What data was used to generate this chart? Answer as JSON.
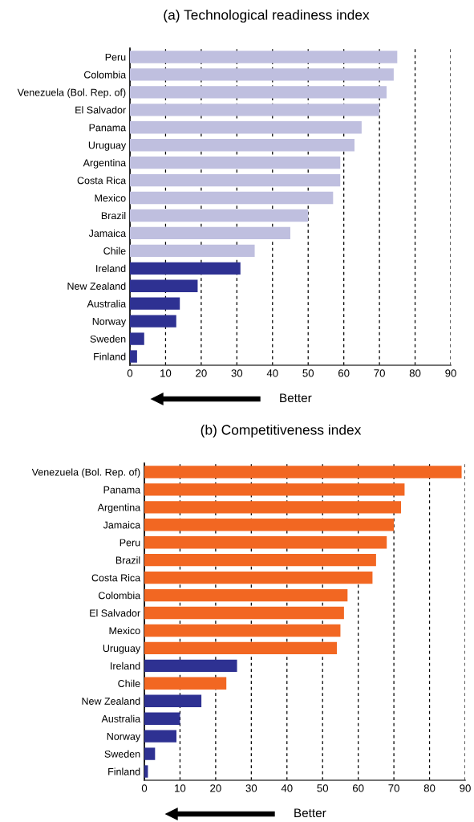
{
  "chart_data": [
    {
      "type": "bar",
      "orientation": "horizontal",
      "title": "(a) Technological readiness index",
      "categories": [
        "Peru",
        "Colombia",
        "Venezuela (Bol. Rep. of)",
        "El Salvador",
        "Panama",
        "Uruguay",
        "Argentina",
        "Costa Rica",
        "Mexico",
        "Brazil",
        "Jamaica",
        "Chile",
        "Ireland",
        "New Zealand",
        "Australia",
        "Norway",
        "Sweden",
        "Finland"
      ],
      "values": [
        75,
        74,
        72,
        70,
        65,
        63,
        59,
        59,
        57,
        50,
        45,
        35,
        31,
        19,
        14,
        13,
        4,
        2
      ],
      "colors": [
        "#bfbfdf",
        "#bfbfdf",
        "#bfbfdf",
        "#bfbfdf",
        "#bfbfdf",
        "#bfbfdf",
        "#bfbfdf",
        "#bfbfdf",
        "#bfbfdf",
        "#bfbfdf",
        "#bfbfdf",
        "#bfbfdf",
        "#2e3192",
        "#2e3192",
        "#2e3192",
        "#2e3192",
        "#2e3192",
        "#2e3192"
      ],
      "xlim": [
        0,
        90
      ],
      "xticks": [
        0,
        10,
        20,
        30,
        40,
        50,
        60,
        70,
        80,
        90
      ],
      "grid": "x",
      "annotations": [
        "Better"
      ]
    },
    {
      "type": "bar",
      "orientation": "horizontal",
      "title": "(b) Competitiveness index",
      "categories": [
        "Venezuela (Bol. Rep. of)",
        "Panama",
        "Argentina",
        "Jamaica",
        "Peru",
        "Brazil",
        "Costa Rica",
        "Colombia",
        "El Salvador",
        "Mexico",
        "Uruguay",
        "Ireland",
        "Chile",
        "New Zealand",
        "Australia",
        "Norway",
        "Sweden",
        "Finland"
      ],
      "values": [
        89,
        73,
        72,
        70,
        68,
        65,
        64,
        57,
        56,
        55,
        54,
        26,
        23,
        16,
        10,
        9,
        3,
        1
      ],
      "colors": [
        "#f26722",
        "#f26722",
        "#f26722",
        "#f26722",
        "#f26722",
        "#f26722",
        "#f26722",
        "#f26722",
        "#f26722",
        "#f26722",
        "#f26722",
        "#2e3192",
        "#f26722",
        "#2e3192",
        "#2e3192",
        "#2e3192",
        "#2e3192",
        "#2e3192"
      ],
      "xlim": [
        0,
        90
      ],
      "xticks": [
        0,
        10,
        20,
        30,
        40,
        50,
        60,
        70,
        80,
        90
      ],
      "grid": "x",
      "annotations": [
        "Better"
      ]
    }
  ]
}
